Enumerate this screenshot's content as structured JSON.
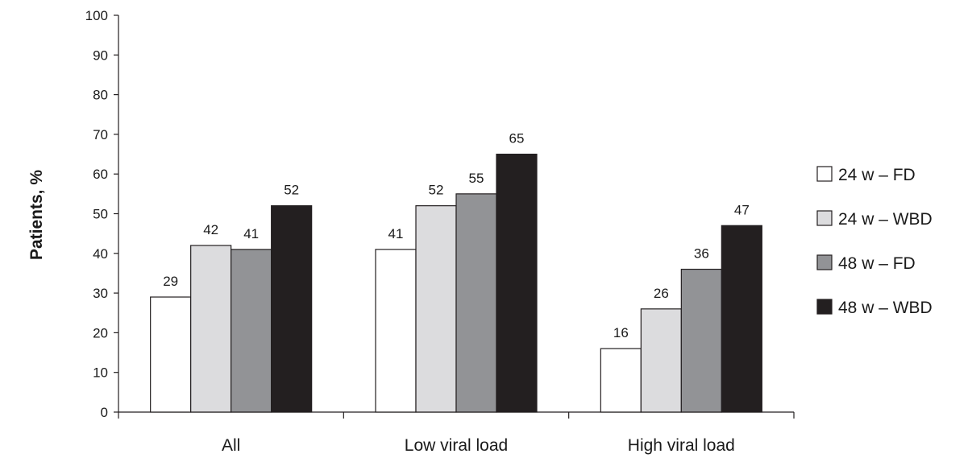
{
  "chart_data": {
    "type": "bar",
    "categories": [
      "All",
      "Low viral load",
      "High viral load"
    ],
    "series": [
      {
        "name": "24 w – FD",
        "values": [
          29,
          41,
          16
        ],
        "color": "#ffffff"
      },
      {
        "name": "24 w – WBD",
        "values": [
          42,
          52,
          26
        ],
        "color": "#dcdcde"
      },
      {
        "name": "48 w – FD",
        "values": [
          41,
          55,
          36
        ],
        "color": "#929396"
      },
      {
        "name": "48 w – WBD",
        "values": [
          52,
          65,
          47
        ],
        "color": "#231f20"
      }
    ],
    "title": "",
    "xlabel": "",
    "ylabel": "Patients, %",
    "ylim": [
      0,
      100
    ],
    "yticks": [
      0,
      10,
      20,
      30,
      40,
      50,
      60,
      70,
      80,
      90,
      100
    ],
    "grid": false,
    "legend_position": "right",
    "data_labels": true
  }
}
